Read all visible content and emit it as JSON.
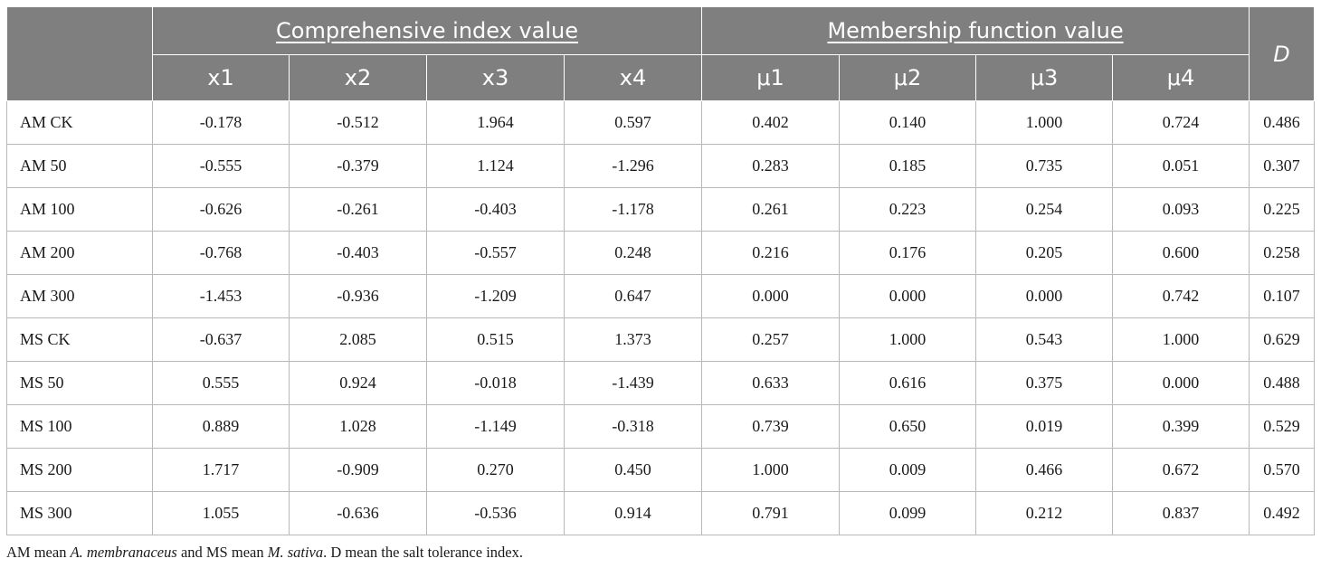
{
  "table": {
    "group_headers": {
      "comprehensive": "Comprehensive index value",
      "membership": "Membership function value",
      "d": "D"
    },
    "columns": [
      "x1",
      "x2",
      "x3",
      "x4",
      "μ1",
      "μ2",
      "μ3",
      "μ4"
    ],
    "rows": [
      {
        "label": "AM CK",
        "values": [
          "-0.178",
          "-0.512",
          "1.964",
          "0.597",
          "0.402",
          "0.140",
          "1.000",
          "0.724",
          "0.486"
        ]
      },
      {
        "label": "AM 50",
        "values": [
          "-0.555",
          "-0.379",
          "1.124",
          "-1.296",
          "0.283",
          "0.185",
          "0.735",
          "0.051",
          "0.307"
        ]
      },
      {
        "label": "AM 100",
        "values": [
          "-0.626",
          "-0.261",
          "-0.403",
          "-1.178",
          "0.261",
          "0.223",
          "0.254",
          "0.093",
          "0.225"
        ]
      },
      {
        "label": "AM 200",
        "values": [
          "-0.768",
          "-0.403",
          "-0.557",
          "0.248",
          "0.216",
          "0.176",
          "0.205",
          "0.600",
          "0.258"
        ]
      },
      {
        "label": "AM 300",
        "values": [
          "-1.453",
          "-0.936",
          "-1.209",
          "0.647",
          "0.000",
          "0.000",
          "0.000",
          "0.742",
          "0.107"
        ]
      },
      {
        "label": "MS CK",
        "values": [
          "-0.637",
          "2.085",
          "0.515",
          "1.373",
          "0.257",
          "1.000",
          "0.543",
          "1.000",
          "0.629"
        ]
      },
      {
        "label": "MS 50",
        "values": [
          "0.555",
          "0.924",
          "-0.018",
          "-1.439",
          "0.633",
          "0.616",
          "0.375",
          "0.000",
          "0.488"
        ]
      },
      {
        "label": "MS 100",
        "values": [
          "0.889",
          "1.028",
          "-1.149",
          "-0.318",
          "0.739",
          "0.650",
          "0.019",
          "0.399",
          "0.529"
        ]
      },
      {
        "label": "MS 200",
        "values": [
          "1.717",
          "-0.909",
          "0.270",
          "0.450",
          "1.000",
          "0.009",
          "0.466",
          "0.672",
          "0.570"
        ]
      },
      {
        "label": "MS 300",
        "values": [
          "1.055",
          "-0.636",
          "-0.536",
          "0.914",
          "0.791",
          "0.099",
          "0.212",
          "0.837",
          "0.492"
        ]
      }
    ]
  },
  "footnote": {
    "p1": "AM mean ",
    "am_species": "A. membranaceus",
    "p2": " and MS mean ",
    "ms_species": "M. sativa",
    "p3": ". D mean the salt tolerance index."
  },
  "colors": {
    "header_bg": "#7f7f7f",
    "header_text": "#ffffff",
    "grid": "#b8b8b8"
  }
}
